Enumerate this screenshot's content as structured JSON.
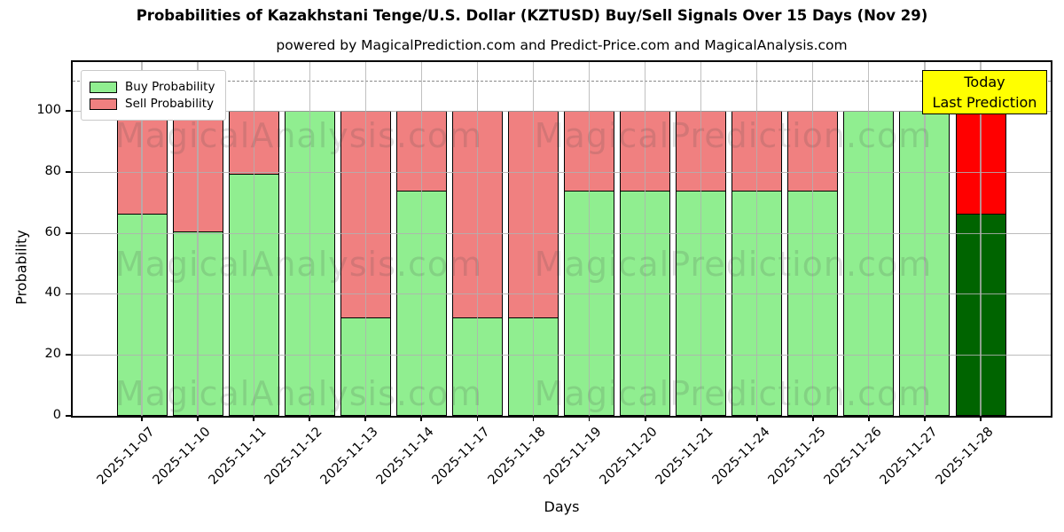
{
  "title": "Probabilities of Kazakhstani Tenge/U.S. Dollar (KZTUSD) Buy/Sell Signals Over 15 Days (Nov 29)",
  "subtitle": "powered by MagicalPrediction.com and Predict-Price.com and MagicalAnalysis.com",
  "chart_data": {
    "type": "bar",
    "stacked": true,
    "categories": [
      "2025-11-07",
      "2025-11-10",
      "2025-11-11",
      "2025-11-12",
      "2025-11-13",
      "2025-11-14",
      "2025-11-17",
      "2025-11-18",
      "2025-11-19",
      "2025-11-20",
      "2025-11-21",
      "2025-11-24",
      "2025-11-25",
      "2025-11-26",
      "2025-11-27",
      "2025-11-28"
    ],
    "series": [
      {
        "name": "Buy Probability",
        "color": "#90EE90",
        "values": [
          66.5,
          60.5,
          79.5,
          100,
          32.5,
          74,
          32.5,
          32.5,
          74,
          74,
          74,
          74,
          74,
          100,
          100,
          66.5
        ]
      },
      {
        "name": "Sell Probability",
        "color": "#F08080",
        "values": [
          33.5,
          39.5,
          20.5,
          0,
          67.5,
          26,
          67.5,
          67.5,
          26,
          26,
          26,
          26,
          26,
          0,
          0,
          33.5
        ]
      }
    ],
    "today": {
      "index": 15,
      "buy_color": "#006400",
      "sell_color": "#FF0000"
    },
    "bar_edge_color": "#000000",
    "xlabel": "Days",
    "ylabel": "Probability",
    "ylim": [
      0,
      116
    ],
    "yticks": [
      0,
      20,
      40,
      60,
      80,
      100
    ],
    "dashed_line_y": 110,
    "grid": true,
    "legend_position": "upper left",
    "annotation": {
      "lines": [
        "Today",
        "Last Prediction"
      ],
      "bg_color": "#FFFF00"
    },
    "watermarks": [
      "MagicalAnalysis.com",
      "MagicalPrediction.com"
    ]
  }
}
